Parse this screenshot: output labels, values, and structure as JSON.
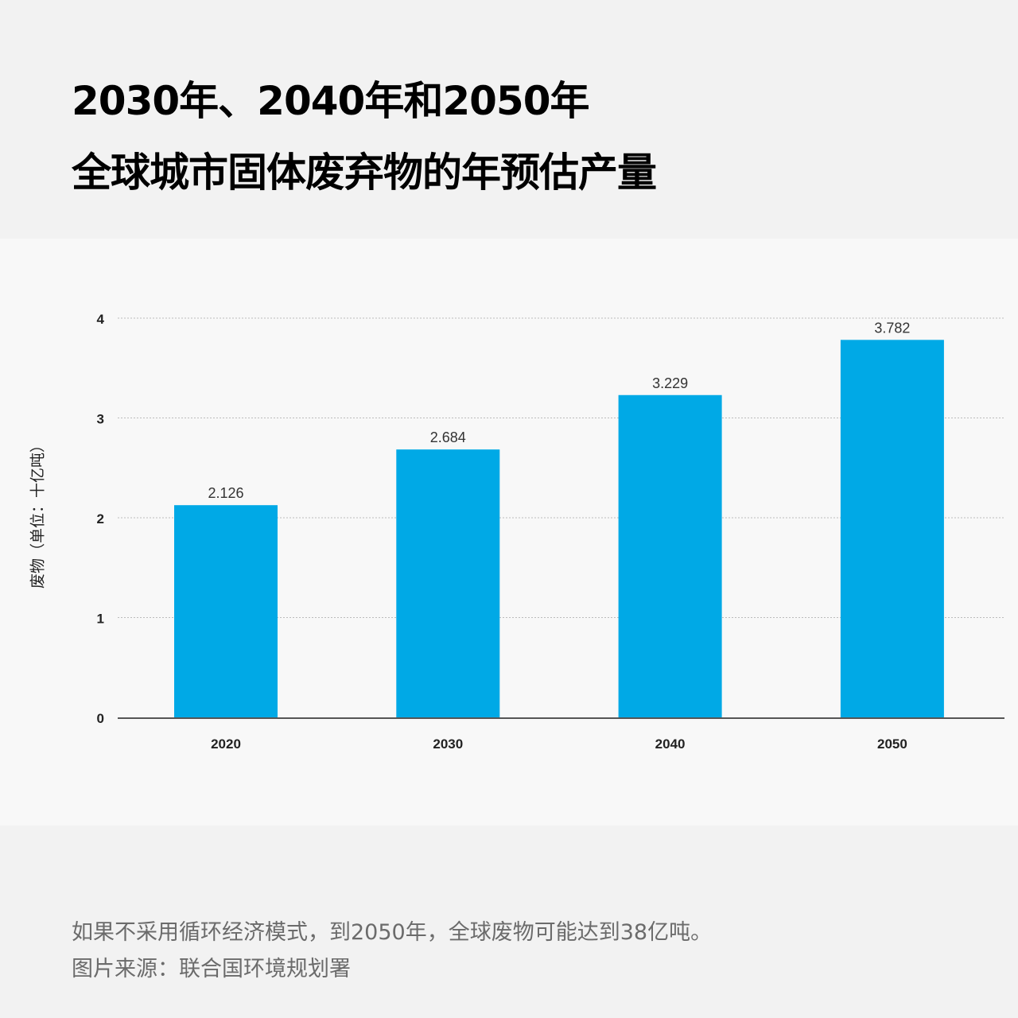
{
  "title": {
    "line1": "2030年、2040年和2050年",
    "line2": "全球城市固体废弃物的年预估产量"
  },
  "caption": {
    "note": "如果不采用循环经济模式，到2050年，全球废物可能达到38亿吨。",
    "source": "图片来源：联合国环境规划署"
  },
  "colors": {
    "bar": "#00a9e6",
    "axis": "#555555",
    "grid": "#bbbbbb",
    "panel": "#f8f8f8",
    "background": "#f2f2f2"
  },
  "chart_data": {
    "type": "bar",
    "categories": [
      "2020",
      "2030",
      "2040",
      "2050"
    ],
    "values": [
      2.126,
      2.684,
      3.229,
      3.782
    ],
    "value_labels": [
      "2.126",
      "2.684",
      "3.229",
      "3.782"
    ],
    "ylabel": "废物（单位：十亿吨）",
    "ylim": [
      0,
      4
    ],
    "yticks": [
      "0",
      "1",
      "2",
      "3",
      "4"
    ],
    "grid": true,
    "legend": false
  }
}
